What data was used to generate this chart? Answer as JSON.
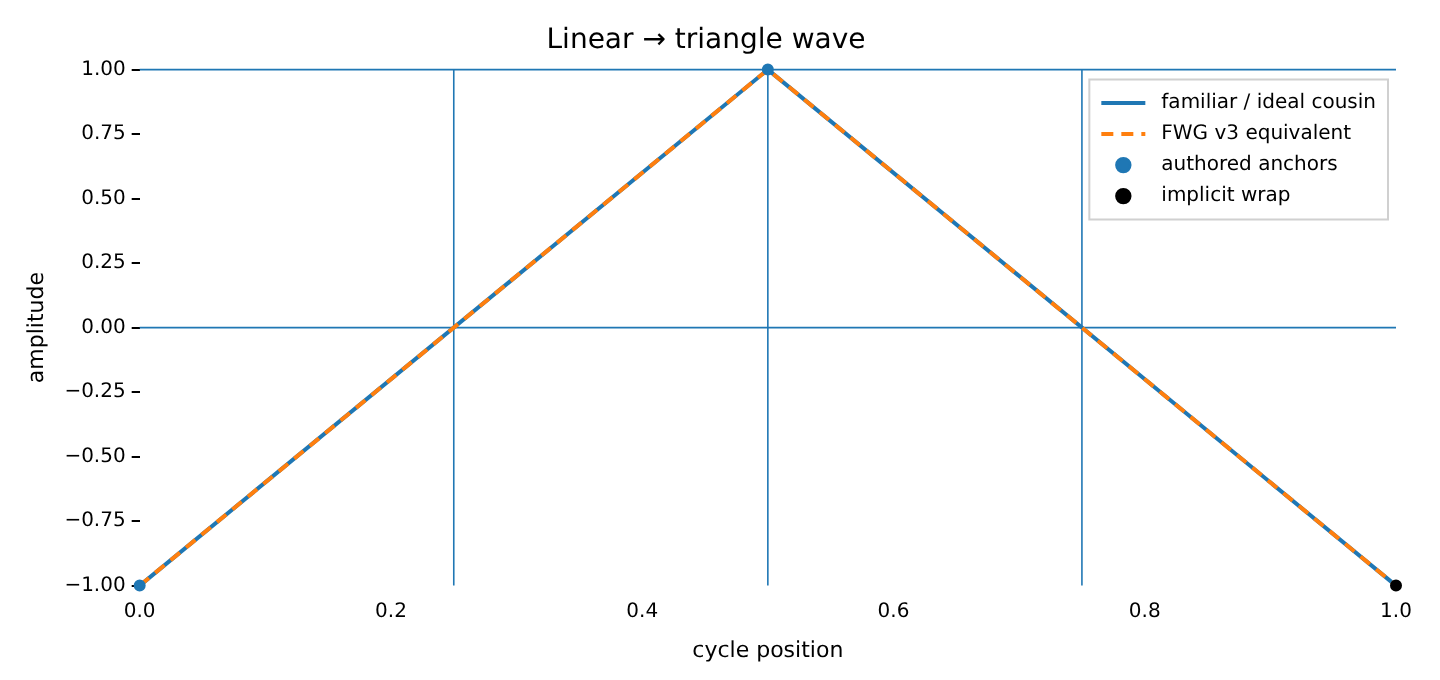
{
  "chart_data": {
    "type": "line",
    "title": "Linear → triangle wave",
    "xlabel": "cycle position",
    "ylabel": "amplitude",
    "xlim": [
      0,
      1
    ],
    "xticks": [
      {
        "value": 0,
        "label": "0.0"
      },
      {
        "value": 0.2,
        "label": "0.2"
      },
      {
        "value": 0.4,
        "label": "0.4"
      },
      {
        "value": 0.6,
        "label": "0.6"
      },
      {
        "value": 0.8,
        "label": "0.8"
      },
      {
        "value": 1,
        "label": "1.0"
      }
    ],
    "ylim": [
      -1,
      1
    ],
    "yticks": [
      {
        "value": -1,
        "label": "−1.00"
      },
      {
        "value": -0.75,
        "label": "−0.75"
      },
      {
        "value": -0.5,
        "label": "−0.50"
      },
      {
        "value": -0.25,
        "label": "−0.25"
      },
      {
        "value": 0,
        "label": "0.00"
      },
      {
        "value": 0.25,
        "label": "0.25"
      },
      {
        "value": 0.5,
        "label": "0.50"
      },
      {
        "value": 0.75,
        "label": "0.75"
      },
      {
        "value": 1,
        "label": "1.00"
      }
    ],
    "series": [
      {
        "name": "familiar / ideal cousin",
        "color": "#1f77b4",
        "line_style": "solid",
        "marker": "none",
        "x": [
          0,
          0.5,
          1
        ],
        "values": [
          -1,
          1,
          -1
        ]
      },
      {
        "name": "FWG v3 equivalent",
        "color": "#ff7f0e",
        "line_style": "dashed",
        "marker": "none",
        "x": [
          0,
          0.5,
          1
        ],
        "values": [
          -1,
          1,
          -1
        ]
      },
      {
        "name": "authored anchors",
        "type": "scatter",
        "color": "#1f77b4",
        "marker": "circle",
        "x": [
          0,
          0.5
        ],
        "values": [
          -1,
          1
        ]
      },
      {
        "name": "implicit wrap",
        "type": "scatter",
        "color": "#000000",
        "marker": "circle",
        "x": [
          1
        ],
        "values": [
          -1
        ]
      }
    ],
    "ref_lines": [
      {
        "axis": "y",
        "value": 0,
        "color": "#1f77b4"
      },
      {
        "axis": "y",
        "value": 1,
        "color": "#1f77b4"
      },
      {
        "axis": "x",
        "value": 0.25,
        "color": "#1f77b4"
      },
      {
        "axis": "x",
        "value": 0.5,
        "color": "#1f77b4"
      },
      {
        "axis": "x",
        "value": 0.75,
        "color": "#1f77b4"
      }
    ],
    "legend": "top right",
    "grid": false
  }
}
